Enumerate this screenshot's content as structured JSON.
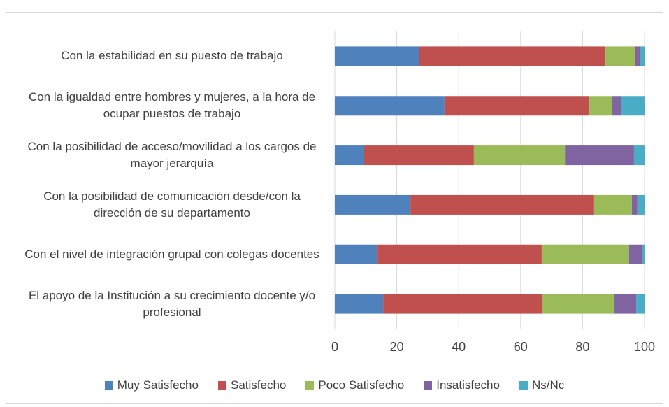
{
  "chart_data": {
    "type": "stacked_bar_horizontal",
    "categories": [
      "Con la estabilidad en su puesto de trabajo",
      "Con la igualdad entre hombres y mujeres, a la hora de ocupar puestos de trabajo",
      "Con la posibilidad de acceso/movilidad a los cargos de mayor jerarquía",
      "Con la posibilidad de comunicación desde/con la dirección de su departamento",
      "Con el nivel de integración grupal con colegas docentes",
      "El apoyo de la Institución a su crecimiento docente y/o profesional"
    ],
    "series": [
      {
        "name": "Muy Satisfecho",
        "color": "#4f81bd",
        "values": [
          27.1,
          35.4,
          9.3,
          24.4,
          13.8,
          15.6
        ]
      },
      {
        "name": "Satisfecho",
        "color": "#c0504d",
        "values": [
          60.3,
          46.8,
          35.6,
          59.1,
          53,
          51.4
        ]
      },
      {
        "name": "Poco Satisfecho",
        "color": "#9bbb59",
        "values": [
          9.5,
          7.4,
          29.4,
          12.4,
          28.2,
          23.3
        ]
      },
      {
        "name": "Insatisfecho",
        "color": "#8064a2",
        "values": [
          1.6,
          2.9,
          22.3,
          1.8,
          4.3,
          7
        ]
      },
      {
        "name": "Ns/Nc",
        "color": "#4bacc6",
        "values": [
          1.5,
          7.5,
          3.4,
          2.3,
          0.7,
          2.7
        ]
      }
    ],
    "xlim": [
      0,
      100
    ],
    "xticks": [
      0,
      20,
      40,
      60,
      80,
      100
    ],
    "grid": true,
    "legend": "bottom"
  }
}
